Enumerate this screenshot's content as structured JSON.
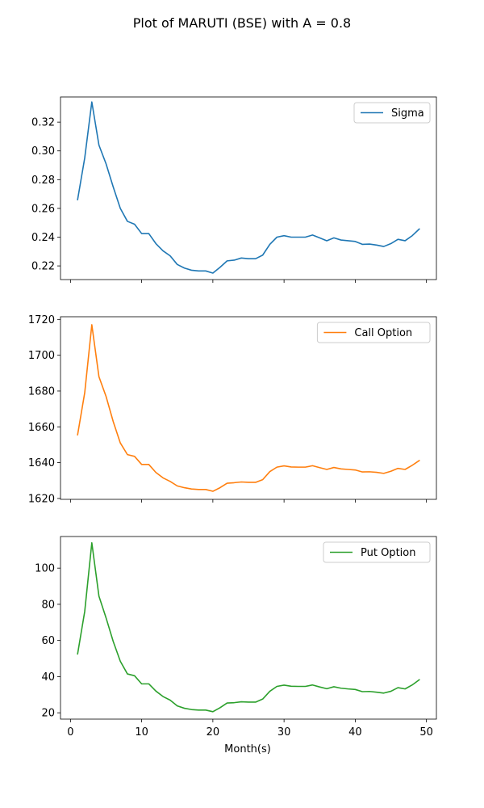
{
  "chart_data": {
    "type": "line",
    "title": "Plot of MARUTI (BSE) with A = 0.8",
    "xlabel": "Month(s)",
    "x": [
      1,
      2,
      3,
      4,
      5,
      6,
      7,
      8,
      9,
      10,
      11,
      12,
      13,
      14,
      15,
      16,
      17,
      18,
      19,
      20,
      21,
      22,
      23,
      24,
      25,
      26,
      27,
      28,
      29,
      30,
      31,
      32,
      33,
      34,
      35,
      36,
      37,
      38,
      39,
      40,
      41,
      42,
      43,
      44,
      45,
      46,
      47,
      48,
      49
    ],
    "xlim": [
      -1.4,
      51.4
    ],
    "xticks": [
      0,
      10,
      20,
      30,
      40,
      50
    ],
    "series": [
      {
        "name": "Sigma",
        "color": "#1f77b4",
        "ylim": [
          0.2105,
          0.3375
        ],
        "yticks": [
          0.22,
          0.24,
          0.26,
          0.28,
          0.3,
          0.32
        ],
        "ytick_labels": [
          "0.22",
          "0.24",
          "0.26",
          "0.28",
          "0.30",
          "0.32"
        ],
        "values": [
          0.266,
          0.295,
          0.334,
          0.304,
          0.291,
          0.275,
          0.26,
          0.251,
          0.249,
          0.2425,
          0.2425,
          0.2355,
          0.2305,
          0.227,
          0.221,
          0.2185,
          0.217,
          0.2165,
          0.2165,
          0.215,
          0.219,
          0.2235,
          0.224,
          0.2255,
          0.225,
          0.225,
          0.2275,
          0.235,
          0.24,
          0.241,
          0.24,
          0.24,
          0.24,
          0.2415,
          0.2395,
          0.2375,
          0.2395,
          0.238,
          0.2375,
          0.237,
          0.235,
          0.2352,
          0.2345,
          0.2335,
          0.2355,
          0.2385,
          0.2375,
          0.241,
          0.2457
        ]
      },
      {
        "name": "Call Option",
        "color": "#ff7f0e",
        "ylim": [
          1619.5,
          1721.5
        ],
        "yticks": [
          1620,
          1640,
          1660,
          1680,
          1700,
          1720
        ],
        "ytick_labels": [
          "1620",
          "1640",
          "1660",
          "1680",
          "1700",
          "1720"
        ],
        "values": [
          1655.5,
          1679,
          1717,
          1688,
          1677,
          1663,
          1651,
          1644.5,
          1643.5,
          1639,
          1639,
          1634.5,
          1631.5,
          1629.5,
          1627,
          1626,
          1625.3,
          1625,
          1625,
          1624,
          1626,
          1628.5,
          1628.8,
          1629.2,
          1629,
          1629,
          1630.5,
          1635,
          1637.5,
          1638.2,
          1637.6,
          1637.5,
          1637.5,
          1638.3,
          1637.2,
          1636.2,
          1637.3,
          1636.5,
          1636.2,
          1635.9,
          1634.8,
          1634.9,
          1634.6,
          1634,
          1635.2,
          1636.8,
          1636.2,
          1638.5,
          1641.2
        ]
      },
      {
        "name": "Put Option",
        "color": "#2ca02c",
        "ylim": [
          16.5,
          117.5
        ],
        "yticks": [
          20,
          40,
          60,
          80,
          100
        ],
        "ytick_labels": [
          "20",
          "40",
          "60",
          "80",
          "100"
        ],
        "values": [
          52.5,
          76,
          114,
          84.5,
          72.5,
          59.5,
          48.5,
          41.5,
          40.5,
          36,
          36,
          32,
          29,
          27,
          23.8,
          22.5,
          21.8,
          21.5,
          21.5,
          20.6,
          22.8,
          25.4,
          25.6,
          26.1,
          25.9,
          25.9,
          27.6,
          31.9,
          34.6,
          35.3,
          34.7,
          34.6,
          34.6,
          35.4,
          34.3,
          33.3,
          34.4,
          33.6,
          33.2,
          32.9,
          31.7,
          31.8,
          31.4,
          30.9,
          31.9,
          33.9,
          33.2,
          35.4,
          38.3
        ]
      }
    ],
    "legend_position": "top-right"
  }
}
